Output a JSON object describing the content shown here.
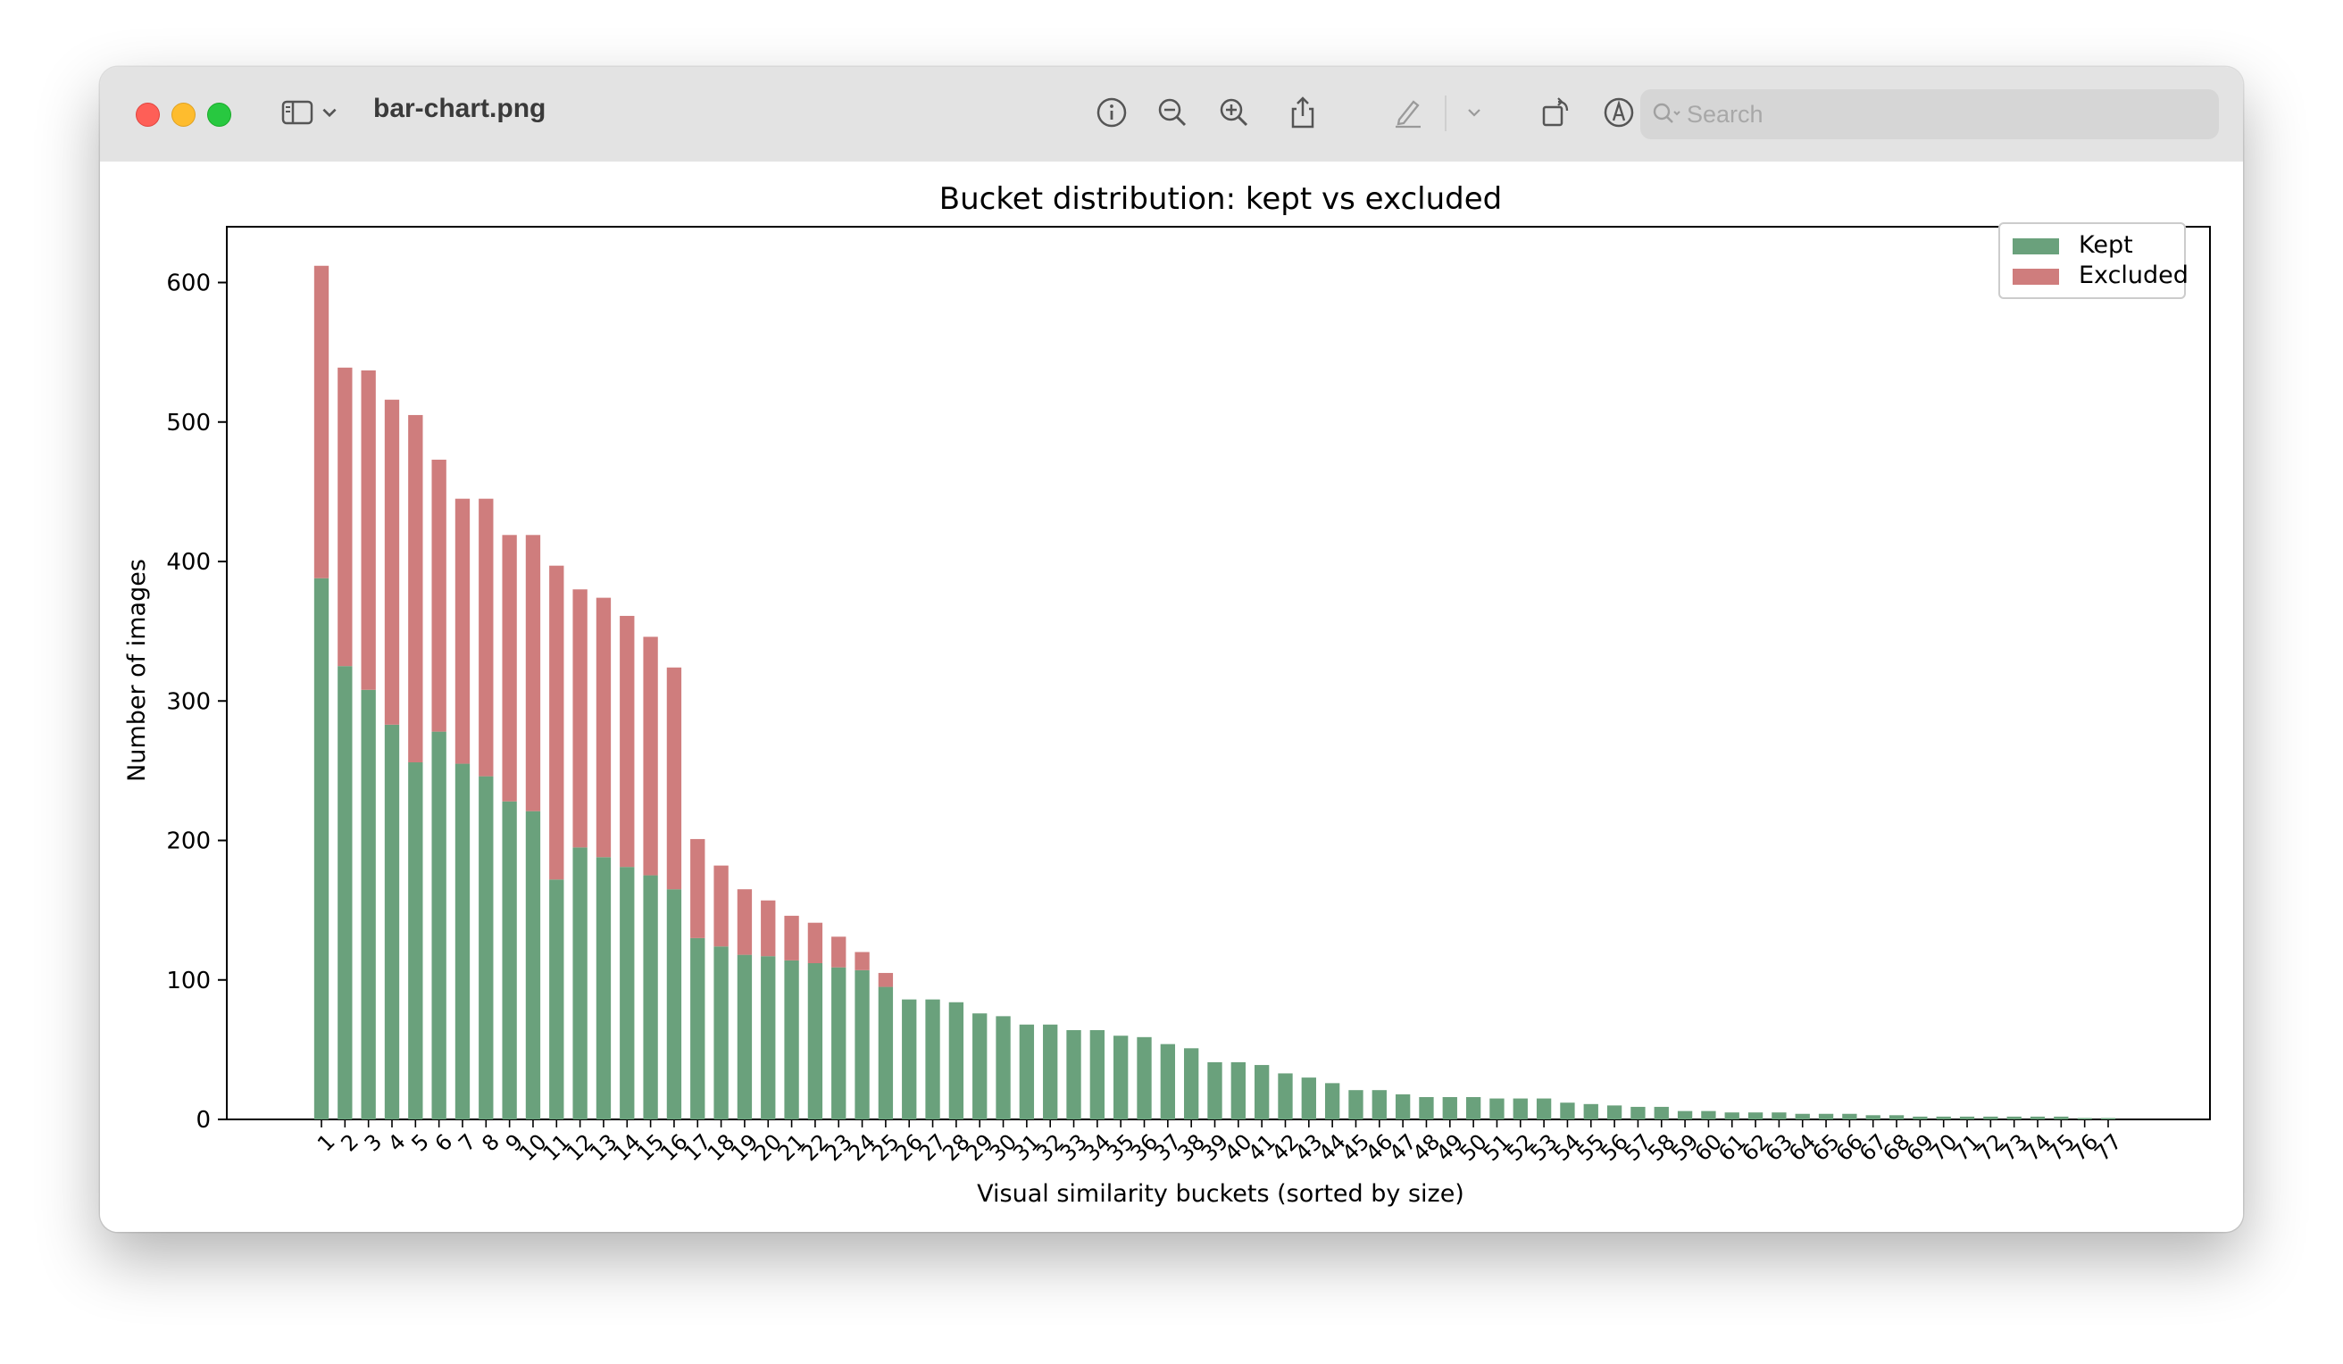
{
  "window": {
    "file_title": "bar-chart.png",
    "search_placeholder": "Search",
    "toolbar_icons": [
      "sidebar-icon",
      "chevron-down-icon",
      "info-icon",
      "zoom-out-icon",
      "zoom-in-icon",
      "share-icon",
      "markup-pen-icon",
      "chevron-down-icon",
      "rotate-icon",
      "annotate-icon",
      "search-icon"
    ]
  },
  "colors": {
    "kept": "#6aa17c",
    "excluded": "#cf7d7d",
    "close": "#fe5f57",
    "minimize": "#febc2e",
    "zoom": "#28c840"
  },
  "chart_data": {
    "type": "bar",
    "stacked": true,
    "title": "Bucket distribution: kept vs excluded",
    "xlabel": "Visual similarity buckets (sorted by size)",
    "ylabel": "Number of images",
    "ylim": [
      0,
      640
    ],
    "yticks": [
      0,
      100,
      200,
      300,
      400,
      500,
      600
    ],
    "legend_position": "top-right",
    "categories": [
      "1",
      "2",
      "3",
      "4",
      "5",
      "6",
      "7",
      "8",
      "9",
      "10",
      "11",
      "12",
      "13",
      "14",
      "15",
      "16",
      "17",
      "18",
      "19",
      "20",
      "21",
      "22",
      "23",
      "24",
      "25",
      "26",
      "27",
      "28",
      "29",
      "30",
      "31",
      "32",
      "33",
      "34",
      "35",
      "36",
      "37",
      "38",
      "39",
      "40",
      "41",
      "42",
      "43",
      "44",
      "45",
      "46",
      "47",
      "48",
      "49",
      "50",
      "51",
      "52",
      "53",
      "54",
      "55",
      "56",
      "57",
      "58",
      "59",
      "60",
      "61",
      "62",
      "63",
      "64",
      "65",
      "66",
      "67",
      "68",
      "69",
      "70",
      "71",
      "72",
      "73",
      "74",
      "75",
      "76",
      "77"
    ],
    "series": [
      {
        "name": "Kept",
        "values": [
          388,
          325,
          308,
          283,
          256,
          278,
          255,
          246,
          228,
          221,
          172,
          195,
          188,
          181,
          175,
          165,
          130,
          124,
          118,
          117,
          114,
          112,
          109,
          107,
          95,
          86,
          86,
          84,
          76,
          74,
          68,
          68,
          64,
          64,
          60,
          59,
          54,
          51,
          41,
          41,
          39,
          33,
          30,
          26,
          21,
          21,
          18,
          16,
          16,
          16,
          15,
          15,
          15,
          12,
          11,
          10,
          9,
          9,
          6,
          6,
          5,
          5,
          5,
          4,
          4,
          4,
          3,
          3,
          2,
          2,
          2,
          2,
          2,
          2,
          2,
          1,
          1
        ]
      },
      {
        "name": "Excluded",
        "values": [
          224,
          214,
          229,
          233,
          249,
          195,
          190,
          199,
          191,
          198,
          225,
          185,
          186,
          180,
          171,
          159,
          71,
          58,
          47,
          40,
          32,
          29,
          22,
          13,
          10,
          0,
          0,
          0,
          0,
          0,
          0,
          0,
          0,
          0,
          0,
          0,
          0,
          0,
          0,
          0,
          0,
          0,
          0,
          0,
          0,
          0,
          0,
          0,
          0,
          0,
          0,
          0,
          0,
          0,
          0,
          0,
          0,
          0,
          0,
          0,
          0,
          0,
          0,
          0,
          0,
          0,
          0,
          0,
          0,
          0,
          0,
          0,
          0,
          0,
          0,
          0,
          0
        ]
      }
    ]
  }
}
